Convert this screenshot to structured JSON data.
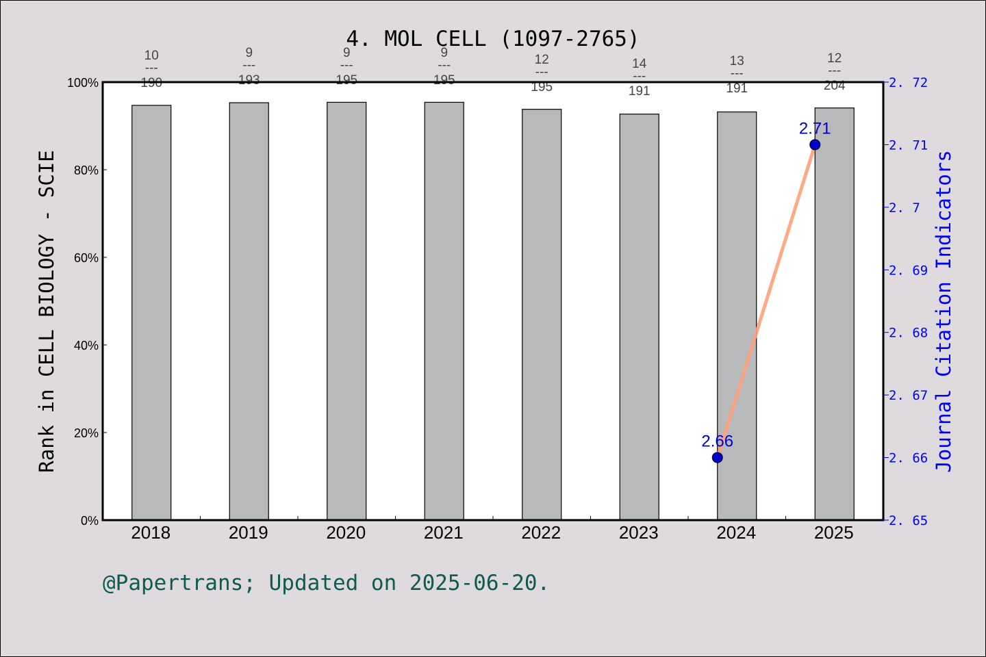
{
  "chart_data": {
    "type": "bar+line",
    "title": "4. MOL CELL (1097-2765)",
    "categories": [
      "2018",
      "2019",
      "2020",
      "2021",
      "2022",
      "2023",
      "2024",
      "2025"
    ],
    "series": [
      {
        "name": "Rank percentile in CELL BIOLOGY - SCIE",
        "type": "bar",
        "axis": "left",
        "values": [
          94.7,
          95.3,
          95.4,
          95.4,
          93.8,
          92.7,
          93.2,
          94.1
        ],
        "color": "#b8b9bb"
      },
      {
        "name": "Journal Citation Indicators",
        "type": "line",
        "axis": "right",
        "x": [
          "2024",
          "2025"
        ],
        "values": [
          2.66,
          2.71
        ],
        "labels": [
          "2.66",
          "2.71"
        ],
        "color": "#ffa07a",
        "marker_color": "#0000cc"
      }
    ],
    "rank_annotations": [
      {
        "year": "2018",
        "rank": "10",
        "total": "190"
      },
      {
        "year": "2019",
        "rank": "9",
        "total": "193"
      },
      {
        "year": "2020",
        "rank": "9",
        "total": "195"
      },
      {
        "year": "2021",
        "rank": "9",
        "total": "195"
      },
      {
        "year": "2022",
        "rank": "12",
        "total": "195"
      },
      {
        "year": "2023",
        "rank": "14",
        "total": "191"
      },
      {
        "year": "2024",
        "rank": "13",
        "total": "191"
      },
      {
        "year": "2025",
        "rank": "12",
        "total": "204"
      }
    ],
    "ylabel": "Rank in CELL BIOLOGY - SCIE",
    "ylabel_right": "Journal Citation Indicators",
    "xlabel": "",
    "ylim": [
      0,
      100
    ],
    "ylim_right": [
      2.65,
      2.72
    ],
    "yticks": [
      "0%",
      "20%",
      "40%",
      "60%",
      "80%",
      "100%"
    ],
    "yticks_right": [
      "2.65",
      "2.66",
      "2.67",
      "2.68",
      "2.69",
      "2.7",
      "2.71",
      "2.72"
    ],
    "grid": false,
    "legend": "none"
  },
  "footer": "@Papertrans; Updated on 2025-06-20."
}
